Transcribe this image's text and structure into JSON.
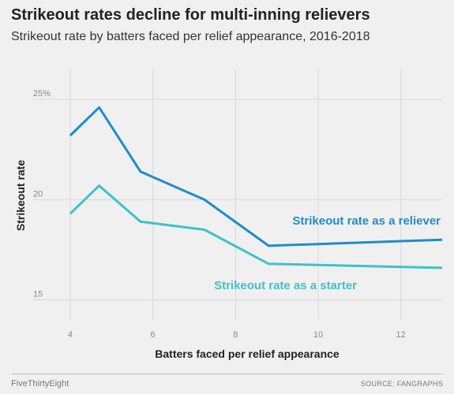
{
  "header": {
    "title": "Strikeout rates decline for multi-inning relievers",
    "subtitle": "Strikeout rate by batters faced per relief appearance, 2016-2018"
  },
  "footer": {
    "brand": "FiveThirtyEight",
    "source": "SOURCE: FANGRAPHS"
  },
  "chart_data": {
    "type": "line",
    "title": "Strikeout rates decline for multi-inning relievers",
    "subtitle": "Strikeout rate by batters faced per relief appearance, 2016-2018",
    "xlabel": "Batters faced per relief appearance",
    "ylabel": "Strikeout rate",
    "xlim": [
      3.6,
      13.0
    ],
    "ylim": [
      14.0,
      26.5
    ],
    "x_ticks": [
      4,
      6,
      8,
      10,
      12
    ],
    "x_tick_labels": [
      "4",
      "6",
      "8",
      "10",
      "12"
    ],
    "y_ticks": [
      15,
      20,
      25
    ],
    "y_tick_labels": [
      "15",
      "20",
      "25%"
    ],
    "grid": true,
    "legend": "direct labels on lines",
    "series": [
      {
        "name": "Strikeout rate as a reliever",
        "color": "#1f8ccb",
        "x": [
          4.0,
          4.7,
          5.7,
          7.25,
          8.8,
          13.0
        ],
        "values": [
          23.2,
          24.6,
          21.4,
          20.0,
          17.7,
          18.0
        ]
      },
      {
        "name": "Strikeout rate as a starter",
        "color": "#3fc1c9",
        "x": [
          4.0,
          4.7,
          5.7,
          7.25,
          8.8,
          13.0
        ],
        "values": [
          19.3,
          20.7,
          18.9,
          18.5,
          16.8,
          16.6
        ]
      }
    ]
  }
}
